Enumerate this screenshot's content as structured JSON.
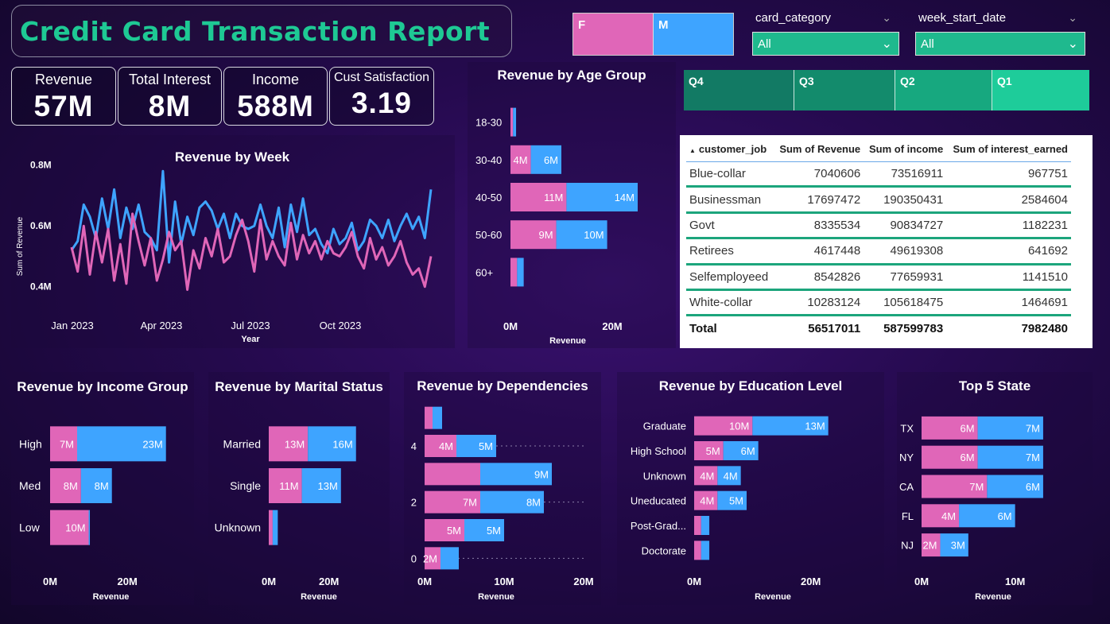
{
  "header": {
    "title": "Credit Card Transaction Report"
  },
  "kpis": [
    {
      "label": "Revenue",
      "value": "57M"
    },
    {
      "label": "Total Interest",
      "value": "8M"
    },
    {
      "label": "Income",
      "value": "588M"
    },
    {
      "label": "Cust Satisfaction",
      "value": "3.19"
    }
  ],
  "gender_slicer": {
    "female": "F",
    "male": "M"
  },
  "filters": {
    "card_category": {
      "label": "card_category",
      "value": "All"
    },
    "week_start_date": {
      "label": "week_start_date",
      "value": "All"
    }
  },
  "quarters": [
    "Q4",
    "Q3",
    "Q2",
    "Q1"
  ],
  "colors": {
    "female": "#e066b8",
    "male": "#3ea4ff",
    "teal": "#1fb98e",
    "title_green": "#1ec994"
  },
  "table": {
    "headers": [
      "customer_job",
      "Sum of Revenue",
      "Sum of income",
      "Sum of interest_earned"
    ],
    "rows": [
      [
        "Blue-collar",
        "7040606",
        "73516911",
        "967751"
      ],
      [
        "Businessman",
        "17697472",
        "190350431",
        "2584604"
      ],
      [
        "Govt",
        "8335534",
        "90834727",
        "1182231"
      ],
      [
        "Retirees",
        "4617448",
        "49619308",
        "641692"
      ],
      [
        "Selfemployeed",
        "8542826",
        "77659931",
        "1141510"
      ],
      [
        "White-collar",
        "10283124",
        "105618475",
        "1464691"
      ]
    ],
    "total": [
      "Total",
      "56517011",
      "587599783",
      "7982480"
    ]
  },
  "chart_data": [
    {
      "id": "week",
      "type": "line",
      "title": "Revenue by Week",
      "xlabel": "Year",
      "ylabel": "Sum of Revenue",
      "x_ticks": [
        "Jan 2023",
        "Apr 2023",
        "Jul 2023",
        "Oct 2023"
      ],
      "y_ticks": [
        "0.4M",
        "0.6M",
        "0.8M"
      ],
      "ylim": [
        0.36,
        0.82
      ],
      "series": [
        {
          "name": "M",
          "values": [
            0.52,
            0.55,
            0.67,
            0.63,
            0.56,
            0.69,
            0.59,
            0.72,
            0.56,
            0.66,
            0.59,
            0.67,
            0.58,
            0.56,
            0.52,
            0.78,
            0.48,
            0.68,
            0.54,
            0.63,
            0.57,
            0.66,
            0.68,
            0.65,
            0.59,
            0.64,
            0.56,
            0.64,
            0.6,
            0.59,
            0.6,
            0.67,
            0.6,
            0.56,
            0.66,
            0.53,
            0.67,
            0.58,
            0.69,
            0.57,
            0.59,
            0.54,
            0.51,
            0.59,
            0.54,
            0.56,
            0.61,
            0.52,
            0.55,
            0.62,
            0.6,
            0.56,
            0.62,
            0.55,
            0.6,
            0.64,
            0.59,
            0.63,
            0.56,
            0.72
          ]
        },
        {
          "name": "F",
          "values": [
            0.53,
            0.45,
            0.6,
            0.44,
            0.58,
            0.48,
            0.59,
            0.42,
            0.54,
            0.41,
            0.64,
            0.55,
            0.47,
            0.56,
            0.42,
            0.49,
            0.58,
            0.52,
            0.55,
            0.39,
            0.52,
            0.46,
            0.56,
            0.5,
            0.59,
            0.48,
            0.5,
            0.57,
            0.62,
            0.55,
            0.45,
            0.62,
            0.49,
            0.55,
            0.5,
            0.47,
            0.61,
            0.49,
            0.57,
            0.51,
            0.55,
            0.49,
            0.55,
            0.51,
            0.5,
            0.53,
            0.58,
            0.5,
            0.46,
            0.56,
            0.49,
            0.53,
            0.47,
            0.5,
            0.55,
            0.48,
            0.44,
            0.46,
            0.4,
            0.5
          ]
        }
      ]
    },
    {
      "id": "age",
      "type": "bar",
      "title": "Revenue by Age Group",
      "xlabel": "Revenue",
      "categories": [
        "18-30",
        "30-40",
        "40-50",
        "50-60",
        "60+"
      ],
      "series": [
        {
          "name": "F",
          "values": [
            0.5,
            4,
            11,
            9,
            1.3
          ],
          "labels": [
            "",
            "4M",
            "11M",
            "9M",
            ""
          ]
        },
        {
          "name": "M",
          "values": [
            0.6,
            6,
            14,
            10,
            1.3
          ],
          "labels": [
            "",
            "6M",
            "14M",
            "10M",
            ""
          ]
        }
      ],
      "x_ticks": [
        {
          "v": 0,
          "t": "0M"
        },
        {
          "v": 20,
          "t": "20M"
        }
      ],
      "xmax": 25
    },
    {
      "id": "income",
      "type": "bar",
      "title": "Revenue by Income Group",
      "xlabel": "Revenue",
      "categories": [
        "High",
        "Med",
        "Low"
      ],
      "series": [
        {
          "name": "F",
          "values": [
            7,
            8,
            10
          ],
          "labels": [
            "7M",
            "8M",
            "10M"
          ]
        },
        {
          "name": "M",
          "values": [
            23,
            8,
            0.3
          ],
          "labels": [
            "23M",
            "8M",
            ""
          ]
        }
      ],
      "x_ticks": [
        {
          "v": 0,
          "t": "0M"
        },
        {
          "v": 20,
          "t": "20M"
        }
      ],
      "xmax": 35
    },
    {
      "id": "marital",
      "type": "bar",
      "title": "Revenue by Marital Status",
      "xlabel": "Revenue",
      "categories": [
        "Married",
        "Single",
        "Unknown"
      ],
      "series": [
        {
          "name": "F",
          "values": [
            13,
            11,
            1.3
          ],
          "labels": [
            "13M",
            "11M",
            ""
          ]
        },
        {
          "name": "M",
          "values": [
            16,
            13,
            1.7
          ],
          "labels": [
            "16M",
            "13M",
            ""
          ]
        }
      ],
      "x_ticks": [
        {
          "v": 0,
          "t": "0M"
        },
        {
          "v": 20,
          "t": "20M"
        }
      ],
      "xmax": 37
    },
    {
      "id": "dependencies",
      "type": "bar",
      "title": "Revenue by Dependencies",
      "xlabel": "Revenue",
      "categories": [
        "5",
        "4",
        "3",
        "2",
        "1",
        "0"
      ],
      "category_labels": [
        "",
        "4",
        "",
        "2",
        "",
        "0"
      ],
      "series": [
        {
          "name": "F",
          "values": [
            1,
            4,
            7,
            7,
            5,
            2
          ],
          "labels": [
            "",
            "4M",
            "",
            "7M",
            "5M",
            "2M"
          ]
        },
        {
          "name": "M",
          "values": [
            1.2,
            5,
            9,
            8,
            5,
            2.3
          ],
          "labels": [
            "",
            "5M",
            "9M",
            "8M",
            "5M",
            ""
          ]
        }
      ],
      "x_ticks": [
        {
          "v": 0,
          "t": "0M"
        },
        {
          "v": 10,
          "t": "10M"
        },
        {
          "v": 20,
          "t": "20M"
        }
      ],
      "xmax": 20
    },
    {
      "id": "education",
      "type": "bar",
      "title": "Revenue by Education Level",
      "xlabel": "Revenue",
      "categories": [
        "Graduate",
        "High School",
        "Unknown",
        "Uneducated",
        "Post-Grad...",
        "Doctorate"
      ],
      "series": [
        {
          "name": "F",
          "values": [
            10,
            5,
            4,
            4,
            1.2,
            1.2
          ],
          "labels": [
            "10M",
            "5M",
            "4M",
            "4M",
            "",
            ""
          ]
        },
        {
          "name": "M",
          "values": [
            13,
            6,
            4,
            5,
            1.4,
            1.4
          ],
          "labels": [
            "13M",
            "6M",
            "4M",
            "5M",
            "",
            ""
          ]
        }
      ],
      "x_ticks": [
        {
          "v": 0,
          "t": "0M"
        },
        {
          "v": 20,
          "t": "20M"
        }
      ],
      "xmax": 30
    },
    {
      "id": "state",
      "type": "bar",
      "title": "Top 5 State",
      "xlabel": "Revenue",
      "categories": [
        "TX",
        "NY",
        "CA",
        "FL",
        "NJ"
      ],
      "series": [
        {
          "name": "F",
          "values": [
            6,
            6,
            7,
            4,
            2
          ],
          "labels": [
            "6M",
            "6M",
            "7M",
            "4M",
            "2M"
          ]
        },
        {
          "name": "M",
          "values": [
            7,
            7,
            6,
            6,
            3
          ],
          "labels": [
            "7M",
            "7M",
            "6M",
            "6M",
            "3M"
          ]
        }
      ],
      "x_ticks": [
        {
          "v": 0,
          "t": "0M"
        },
        {
          "v": 10,
          "t": "10M"
        }
      ],
      "xmax": 17
    }
  ]
}
